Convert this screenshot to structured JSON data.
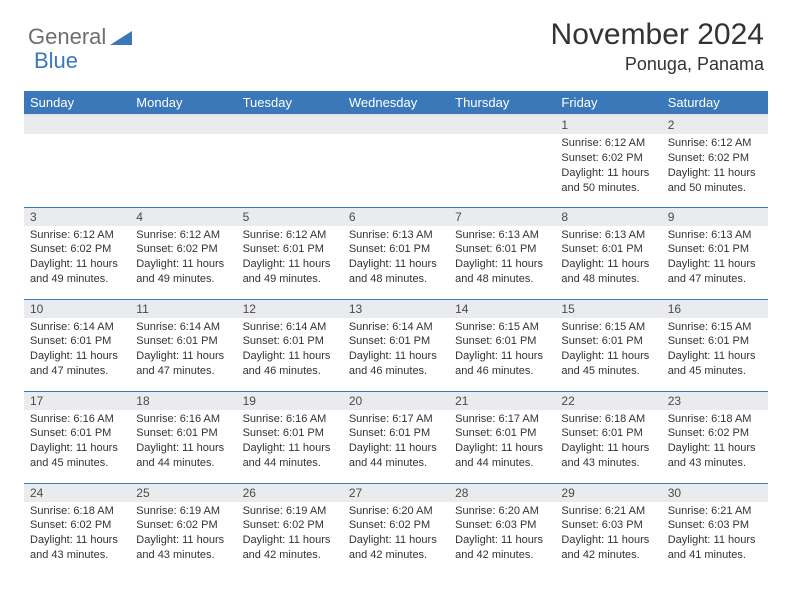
{
  "logo": {
    "text1": "General",
    "text2": "Blue"
  },
  "title": "November 2024",
  "location": "Ponuga, Panama",
  "colors": {
    "header_bg": "#3a78b9",
    "header_text": "#ffffff",
    "daynum_bg": "#e9ebee",
    "cell_border": "#3a78b9",
    "body_text": "#333333",
    "logo_gray": "#6d6e71",
    "logo_blue": "#3a78b9"
  },
  "weekdays": [
    "Sunday",
    "Monday",
    "Tuesday",
    "Wednesday",
    "Thursday",
    "Friday",
    "Saturday"
  ],
  "cells": [
    {
      "day": "",
      "sunrise": "",
      "sunset": "",
      "daylight": ""
    },
    {
      "day": "",
      "sunrise": "",
      "sunset": "",
      "daylight": ""
    },
    {
      "day": "",
      "sunrise": "",
      "sunset": "",
      "daylight": ""
    },
    {
      "day": "",
      "sunrise": "",
      "sunset": "",
      "daylight": ""
    },
    {
      "day": "",
      "sunrise": "",
      "sunset": "",
      "daylight": ""
    },
    {
      "day": "1",
      "sunrise": "Sunrise: 6:12 AM",
      "sunset": "Sunset: 6:02 PM",
      "daylight": "Daylight: 11 hours and 50 minutes."
    },
    {
      "day": "2",
      "sunrise": "Sunrise: 6:12 AM",
      "sunset": "Sunset: 6:02 PM",
      "daylight": "Daylight: 11 hours and 50 minutes."
    },
    {
      "day": "3",
      "sunrise": "Sunrise: 6:12 AM",
      "sunset": "Sunset: 6:02 PM",
      "daylight": "Daylight: 11 hours and 49 minutes."
    },
    {
      "day": "4",
      "sunrise": "Sunrise: 6:12 AM",
      "sunset": "Sunset: 6:02 PM",
      "daylight": "Daylight: 11 hours and 49 minutes."
    },
    {
      "day": "5",
      "sunrise": "Sunrise: 6:12 AM",
      "sunset": "Sunset: 6:01 PM",
      "daylight": "Daylight: 11 hours and 49 minutes."
    },
    {
      "day": "6",
      "sunrise": "Sunrise: 6:13 AM",
      "sunset": "Sunset: 6:01 PM",
      "daylight": "Daylight: 11 hours and 48 minutes."
    },
    {
      "day": "7",
      "sunrise": "Sunrise: 6:13 AM",
      "sunset": "Sunset: 6:01 PM",
      "daylight": "Daylight: 11 hours and 48 minutes."
    },
    {
      "day": "8",
      "sunrise": "Sunrise: 6:13 AM",
      "sunset": "Sunset: 6:01 PM",
      "daylight": "Daylight: 11 hours and 48 minutes."
    },
    {
      "day": "9",
      "sunrise": "Sunrise: 6:13 AM",
      "sunset": "Sunset: 6:01 PM",
      "daylight": "Daylight: 11 hours and 47 minutes."
    },
    {
      "day": "10",
      "sunrise": "Sunrise: 6:14 AM",
      "sunset": "Sunset: 6:01 PM",
      "daylight": "Daylight: 11 hours and 47 minutes."
    },
    {
      "day": "11",
      "sunrise": "Sunrise: 6:14 AM",
      "sunset": "Sunset: 6:01 PM",
      "daylight": "Daylight: 11 hours and 47 minutes."
    },
    {
      "day": "12",
      "sunrise": "Sunrise: 6:14 AM",
      "sunset": "Sunset: 6:01 PM",
      "daylight": "Daylight: 11 hours and 46 minutes."
    },
    {
      "day": "13",
      "sunrise": "Sunrise: 6:14 AM",
      "sunset": "Sunset: 6:01 PM",
      "daylight": "Daylight: 11 hours and 46 minutes."
    },
    {
      "day": "14",
      "sunrise": "Sunrise: 6:15 AM",
      "sunset": "Sunset: 6:01 PM",
      "daylight": "Daylight: 11 hours and 46 minutes."
    },
    {
      "day": "15",
      "sunrise": "Sunrise: 6:15 AM",
      "sunset": "Sunset: 6:01 PM",
      "daylight": "Daylight: 11 hours and 45 minutes."
    },
    {
      "day": "16",
      "sunrise": "Sunrise: 6:15 AM",
      "sunset": "Sunset: 6:01 PM",
      "daylight": "Daylight: 11 hours and 45 minutes."
    },
    {
      "day": "17",
      "sunrise": "Sunrise: 6:16 AM",
      "sunset": "Sunset: 6:01 PM",
      "daylight": "Daylight: 11 hours and 45 minutes."
    },
    {
      "day": "18",
      "sunrise": "Sunrise: 6:16 AM",
      "sunset": "Sunset: 6:01 PM",
      "daylight": "Daylight: 11 hours and 44 minutes."
    },
    {
      "day": "19",
      "sunrise": "Sunrise: 6:16 AM",
      "sunset": "Sunset: 6:01 PM",
      "daylight": "Daylight: 11 hours and 44 minutes."
    },
    {
      "day": "20",
      "sunrise": "Sunrise: 6:17 AM",
      "sunset": "Sunset: 6:01 PM",
      "daylight": "Daylight: 11 hours and 44 minutes."
    },
    {
      "day": "21",
      "sunrise": "Sunrise: 6:17 AM",
      "sunset": "Sunset: 6:01 PM",
      "daylight": "Daylight: 11 hours and 44 minutes."
    },
    {
      "day": "22",
      "sunrise": "Sunrise: 6:18 AM",
      "sunset": "Sunset: 6:01 PM",
      "daylight": "Daylight: 11 hours and 43 minutes."
    },
    {
      "day": "23",
      "sunrise": "Sunrise: 6:18 AM",
      "sunset": "Sunset: 6:02 PM",
      "daylight": "Daylight: 11 hours and 43 minutes."
    },
    {
      "day": "24",
      "sunrise": "Sunrise: 6:18 AM",
      "sunset": "Sunset: 6:02 PM",
      "daylight": "Daylight: 11 hours and 43 minutes."
    },
    {
      "day": "25",
      "sunrise": "Sunrise: 6:19 AM",
      "sunset": "Sunset: 6:02 PM",
      "daylight": "Daylight: 11 hours and 43 minutes."
    },
    {
      "day": "26",
      "sunrise": "Sunrise: 6:19 AM",
      "sunset": "Sunset: 6:02 PM",
      "daylight": "Daylight: 11 hours and 42 minutes."
    },
    {
      "day": "27",
      "sunrise": "Sunrise: 6:20 AM",
      "sunset": "Sunset: 6:02 PM",
      "daylight": "Daylight: 11 hours and 42 minutes."
    },
    {
      "day": "28",
      "sunrise": "Sunrise: 6:20 AM",
      "sunset": "Sunset: 6:03 PM",
      "daylight": "Daylight: 11 hours and 42 minutes."
    },
    {
      "day": "29",
      "sunrise": "Sunrise: 6:21 AM",
      "sunset": "Sunset: 6:03 PM",
      "daylight": "Daylight: 11 hours and 42 minutes."
    },
    {
      "day": "30",
      "sunrise": "Sunrise: 6:21 AM",
      "sunset": "Sunset: 6:03 PM",
      "daylight": "Daylight: 11 hours and 41 minutes."
    }
  ]
}
